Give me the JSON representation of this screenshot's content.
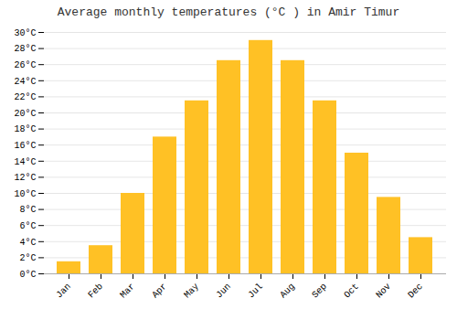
{
  "chart_data": {
    "type": "bar",
    "title": "Average monthly temperatures (°C ) in Amir Timur",
    "categories": [
      "Jan",
      "Feb",
      "Mar",
      "Apr",
      "May",
      "Jun",
      "Jul",
      "Aug",
      "Sep",
      "Oct",
      "Nov",
      "Dec"
    ],
    "values": [
      1.5,
      3.5,
      10.0,
      17.0,
      21.5,
      26.5,
      29.0,
      26.5,
      21.5,
      15.0,
      9.5,
      4.5
    ],
    "color": "#FFC125",
    "ylim": [
      0,
      30
    ],
    "yticks": [
      {
        "value": 0,
        "label": "0°C"
      },
      {
        "value": 2,
        "label": "2°C"
      },
      {
        "value": 4,
        "label": "4°C"
      },
      {
        "value": 6,
        "label": "6°C"
      },
      {
        "value": 8,
        "label": "8°C"
      },
      {
        "value": 10,
        "label": "10°C"
      },
      {
        "value": 12,
        "label": "12°C"
      },
      {
        "value": 14,
        "label": "14°C"
      },
      {
        "value": 16,
        "label": "16°C"
      },
      {
        "value": 18,
        "label": "18°C"
      },
      {
        "value": 20,
        "label": "20°C"
      },
      {
        "value": 22,
        "label": "22°C"
      },
      {
        "value": 24,
        "label": "24°C"
      },
      {
        "value": 26,
        "label": "26°C"
      },
      {
        "value": 28,
        "label": "28°C"
      },
      {
        "value": 30,
        "label": "30°C"
      }
    ],
    "grid": true
  }
}
